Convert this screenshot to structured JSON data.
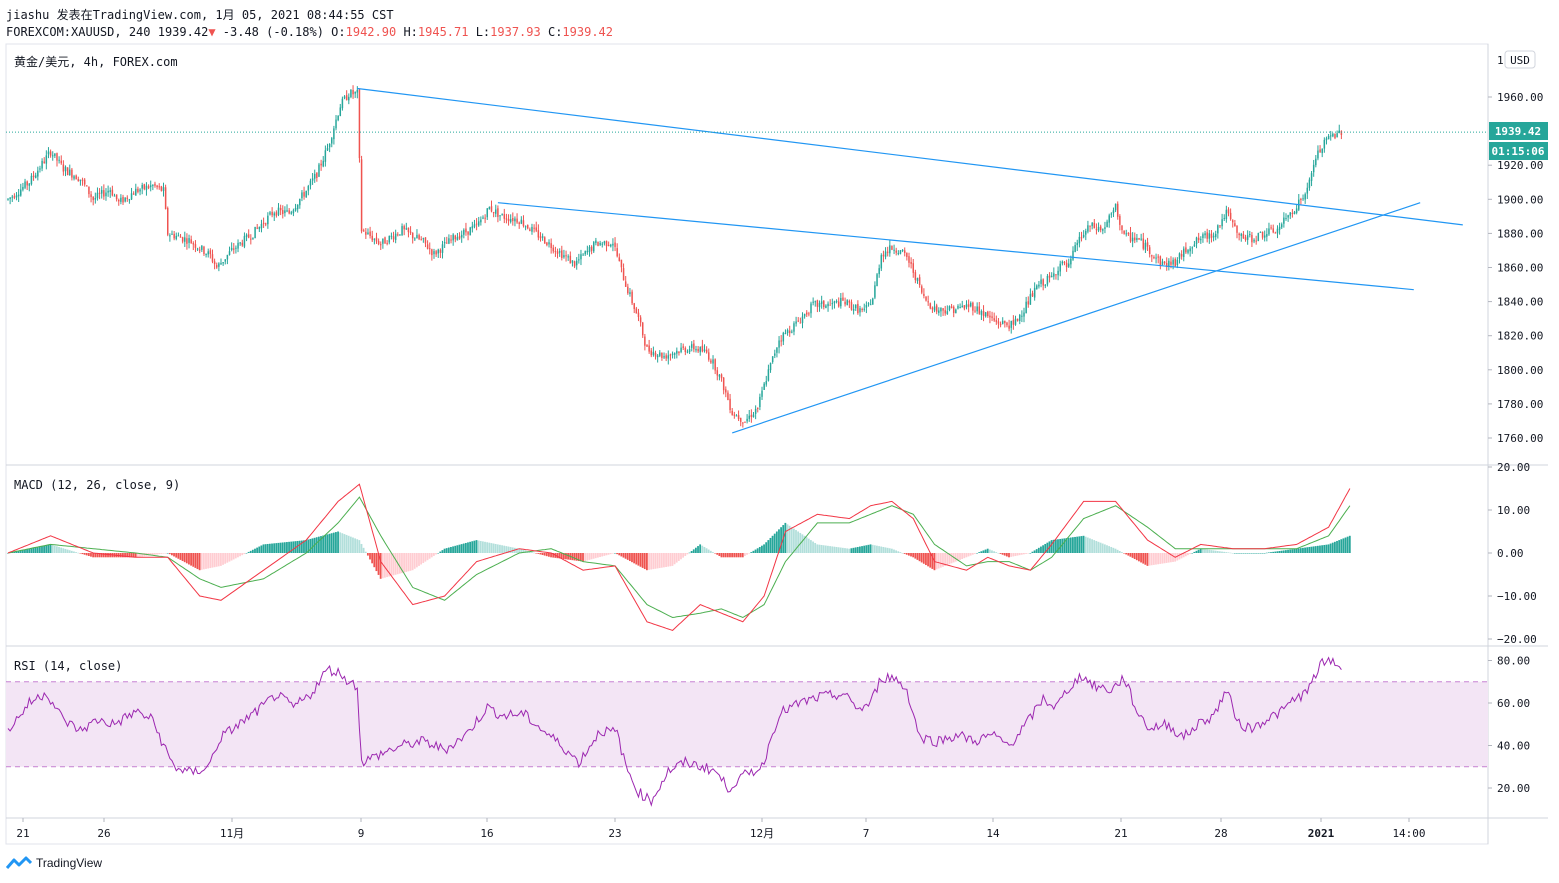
{
  "header": {
    "publish_line": "jiashu 发表在TradingView.com, 1月 05, 2021 08:44:55 CST",
    "symbol": "FOREXCOM:XAUUSD, 240",
    "last": "1939.42",
    "change": "-3.48 (-0.18%)",
    "o_label": "O:",
    "o_value": "1942.90",
    "h_label": "H:",
    "h_value": "1945.71",
    "l_label": "L:",
    "l_value": "1937.93",
    "c_label": "C:",
    "c_value": "1939.42"
  },
  "price_pane": {
    "title": "黄金/美元, 4h, FOREX.com",
    "currency_button": "USD",
    "axis_top_partial": "1",
    "last_price_label": "1939.42",
    "countdown_label": "01:15:06"
  },
  "macd_pane": {
    "title": "MACD (12, 26, close, 9)"
  },
  "rsi_pane": {
    "title": "RSI (14, close)"
  },
  "footer": {
    "brand": "TradingView"
  },
  "colors": {
    "up": "#26a69a",
    "down": "#ef5350",
    "trendline": "#2196f3",
    "macd": "#f23645",
    "signal": "#4caf50",
    "rsi": "#9c27b0",
    "rsi_band": "#f3e5f5",
    "hist_up_strong": "#26a69a",
    "hist_up_weak": "#b2dfdb",
    "hist_dn_strong": "#ef5350",
    "hist_dn_weak": "#ffcdd2"
  },
  "chart_data": {
    "type": "candlestick",
    "timeframe": "4h",
    "x_tick_labels": [
      "21",
      "26",
      "11月",
      "9",
      "16",
      "23",
      "12月",
      "7",
      "14",
      "21",
      "28",
      "2021",
      "14:00"
    ],
    "price_axis": {
      "ticks": [
        1760,
        1780,
        1800,
        1820,
        1840,
        1860,
        1880,
        1900,
        1920,
        1960
      ],
      "tick_labels": [
        "1760.00",
        "1780.00",
        "1800.00",
        "1820.00",
        "1840.00",
        "1860.00",
        "1880.00",
        "1900.00",
        "1920.00",
        "1960.00"
      ],
      "range": [
        1745,
        1980
      ]
    },
    "macd_axis": {
      "ticks": [
        -20,
        -10,
        0,
        10,
        20
      ],
      "tick_labels": [
        "−20.00",
        "−10.00",
        "0.00",
        "10.00",
        "20.00"
      ],
      "range": [
        -20,
        20
      ]
    },
    "rsi_axis": {
      "ticks": [
        20,
        40,
        60,
        80
      ],
      "tick_labels": [
        "20.00",
        "40.00",
        "60.00",
        "80.00"
      ],
      "range": [
        8,
        88
      ],
      "band": [
        30,
        70
      ]
    },
    "last_price": 1939.42,
    "price_path": [
      [
        0,
        1900
      ],
      [
        10,
        1910
      ],
      [
        20,
        1928
      ],
      [
        26,
        1918
      ],
      [
        34,
        1912
      ],
      [
        40,
        1900
      ],
      [
        48,
        1906
      ],
      [
        52,
        1898
      ],
      [
        60,
        1905
      ],
      [
        68,
        1908
      ],
      [
        73,
        1905
      ],
      [
        75,
        1880
      ],
      [
        85,
        1876
      ],
      [
        95,
        1867
      ],
      [
        98,
        1860
      ],
      [
        105,
        1870
      ],
      [
        115,
        1880
      ],
      [
        125,
        1893
      ],
      [
        132,
        1892
      ],
      [
        140,
        1905
      ],
      [
        145,
        1915
      ],
      [
        150,
        1930
      ],
      [
        156,
        1955
      ],
      [
        160,
        1962
      ],
      [
        164,
        1962
      ],
      [
        166,
        1882
      ],
      [
        175,
        1874
      ],
      [
        185,
        1882
      ],
      [
        195,
        1875
      ],
      [
        200,
        1868
      ],
      [
        210,
        1878
      ],
      [
        220,
        1884
      ],
      [
        226,
        1895
      ],
      [
        232,
        1890
      ],
      [
        240,
        1888
      ],
      [
        248,
        1880
      ],
      [
        256,
        1872
      ],
      [
        266,
        1862
      ],
      [
        276,
        1874
      ],
      [
        284,
        1875
      ],
      [
        290,
        1850
      ],
      [
        296,
        1830
      ],
      [
        300,
        1812
      ],
      [
        308,
        1808
      ],
      [
        316,
        1812
      ],
      [
        322,
        1813
      ],
      [
        328,
        1810
      ],
      [
        332,
        1802
      ],
      [
        336,
        1790
      ],
      [
        340,
        1775
      ],
      [
        346,
        1770
      ],
      [
        352,
        1778
      ],
      [
        356,
        1795
      ],
      [
        362,
        1818
      ],
      [
        370,
        1827
      ],
      [
        378,
        1838
      ],
      [
        386,
        1838
      ],
      [
        392,
        1840
      ],
      [
        398,
        1836
      ],
      [
        402,
        1834
      ],
      [
        406,
        1842
      ],
      [
        410,
        1868
      ],
      [
        416,
        1872
      ],
      [
        422,
        1866
      ],
      [
        426,
        1855
      ],
      [
        430,
        1842
      ],
      [
        436,
        1835
      ],
      [
        446,
        1836
      ],
      [
        452,
        1838
      ],
      [
        458,
        1833
      ],
      [
        464,
        1828
      ],
      [
        472,
        1826
      ],
      [
        478,
        1838
      ],
      [
        484,
        1850
      ],
      [
        490,
        1854
      ],
      [
        494,
        1862
      ],
      [
        498,
        1860
      ],
      [
        502,
        1875
      ],
      [
        508,
        1884
      ],
      [
        514,
        1882
      ],
      [
        520,
        1895
      ],
      [
        524,
        1878
      ],
      [
        530,
        1877
      ],
      [
        536,
        1870
      ],
      [
        542,
        1862
      ],
      [
        548,
        1863
      ],
      [
        554,
        1872
      ],
      [
        560,
        1877
      ],
      [
        566,
        1880
      ],
      [
        572,
        1892
      ],
      [
        578,
        1878
      ],
      [
        584,
        1877
      ],
      [
        590,
        1880
      ],
      [
        596,
        1882
      ],
      [
        602,
        1892
      ],
      [
        606,
        1898
      ],
      [
        610,
        1905
      ],
      [
        614,
        1925
      ],
      [
        620,
        1936
      ],
      [
        626,
        1940
      ]
    ],
    "trendlines": [
      {
        "name": "upper-falling",
        "from": [
          164,
          1965
        ],
        "to": [
          683,
          1885
        ]
      },
      {
        "name": "lower-falling",
        "from": [
          230,
          1898
        ],
        "to": [
          660,
          1847
        ]
      },
      {
        "name": "rising-support",
        "from": [
          340,
          1763
        ],
        "to": [
          663,
          1898
        ]
      }
    ],
    "macd_path": [
      [
        0,
        0
      ],
      [
        20,
        4
      ],
      [
        40,
        0
      ],
      [
        60,
        -1
      ],
      [
        75,
        -1
      ],
      [
        90,
        -10
      ],
      [
        100,
        -11
      ],
      [
        120,
        -4
      ],
      [
        140,
        3
      ],
      [
        155,
        12
      ],
      [
        165,
        16
      ],
      [
        175,
        -2
      ],
      [
        190,
        -12
      ],
      [
        205,
        -10
      ],
      [
        220,
        -2
      ],
      [
        240,
        1
      ],
      [
        255,
        0
      ],
      [
        270,
        -4
      ],
      [
        285,
        -3
      ],
      [
        300,
        -16
      ],
      [
        312,
        -18
      ],
      [
        325,
        -12
      ],
      [
        335,
        -14
      ],
      [
        345,
        -16
      ],
      [
        355,
        -10
      ],
      [
        365,
        5
      ],
      [
        380,
        9
      ],
      [
        395,
        8
      ],
      [
        405,
        11
      ],
      [
        415,
        12
      ],
      [
        425,
        8
      ],
      [
        435,
        -2
      ],
      [
        450,
        -4
      ],
      [
        460,
        -1
      ],
      [
        470,
        -3
      ],
      [
        480,
        -4
      ],
      [
        490,
        2
      ],
      [
        505,
        12
      ],
      [
        520,
        12
      ],
      [
        535,
        3
      ],
      [
        548,
        -1
      ],
      [
        560,
        2
      ],
      [
        575,
        1
      ],
      [
        590,
        1
      ],
      [
        605,
        2
      ],
      [
        620,
        6
      ],
      [
        630,
        15
      ]
    ],
    "signal_path": [
      [
        0,
        0
      ],
      [
        20,
        2
      ],
      [
        40,
        1
      ],
      [
        60,
        0
      ],
      [
        75,
        -1
      ],
      [
        90,
        -6
      ],
      [
        100,
        -8
      ],
      [
        120,
        -6
      ],
      [
        140,
        0
      ],
      [
        155,
        7
      ],
      [
        165,
        13
      ],
      [
        175,
        4
      ],
      [
        190,
        -8
      ],
      [
        205,
        -11
      ],
      [
        220,
        -5
      ],
      [
        240,
        0
      ],
      [
        255,
        1
      ],
      [
        270,
        -2
      ],
      [
        285,
        -3
      ],
      [
        300,
        -12
      ],
      [
        312,
        -15
      ],
      [
        325,
        -14
      ],
      [
        335,
        -13
      ],
      [
        345,
        -15
      ],
      [
        355,
        -12
      ],
      [
        365,
        -2
      ],
      [
        380,
        7
      ],
      [
        395,
        7
      ],
      [
        405,
        9
      ],
      [
        415,
        11
      ],
      [
        425,
        9
      ],
      [
        435,
        2
      ],
      [
        450,
        -3
      ],
      [
        460,
        -2
      ],
      [
        470,
        -2
      ],
      [
        480,
        -4
      ],
      [
        490,
        -1
      ],
      [
        505,
        8
      ],
      [
        520,
        11
      ],
      [
        535,
        6
      ],
      [
        548,
        1
      ],
      [
        560,
        1
      ],
      [
        575,
        1
      ],
      [
        590,
        1
      ],
      [
        605,
        1
      ],
      [
        620,
        4
      ],
      [
        630,
        11
      ]
    ],
    "rsi_path": [
      [
        0,
        47
      ],
      [
        10,
        60
      ],
      [
        18,
        65
      ],
      [
        26,
        52
      ],
      [
        34,
        47
      ],
      [
        42,
        52
      ],
      [
        50,
        50
      ],
      [
        60,
        56
      ],
      [
        68,
        52
      ],
      [
        73,
        40
      ],
      [
        78,
        30
      ],
      [
        86,
        27
      ],
      [
        94,
        30
      ],
      [
        100,
        44
      ],
      [
        110,
        51
      ],
      [
        118,
        57
      ],
      [
        126,
        64
      ],
      [
        134,
        58
      ],
      [
        142,
        64
      ],
      [
        150,
        76
      ],
      [
        156,
        74
      ],
      [
        160,
        70
      ],
      [
        164,
        68
      ],
      [
        166,
        32
      ],
      [
        175,
        36
      ],
      [
        185,
        40
      ],
      [
        195,
        42
      ],
      [
        205,
        38
      ],
      [
        215,
        45
      ],
      [
        225,
        58
      ],
      [
        232,
        54
      ],
      [
        242,
        55
      ],
      [
        250,
        48
      ],
      [
        260,
        40
      ],
      [
        268,
        32
      ],
      [
        278,
        47
      ],
      [
        286,
        46
      ],
      [
        290,
        30
      ],
      [
        296,
        18
      ],
      [
        302,
        14
      ],
      [
        310,
        28
      ],
      [
        318,
        32
      ],
      [
        326,
        30
      ],
      [
        332,
        28
      ],
      [
        338,
        20
      ],
      [
        346,
        26
      ],
      [
        354,
        30
      ],
      [
        362,
        55
      ],
      [
        372,
        60
      ],
      [
        382,
        63
      ],
      [
        392,
        64
      ],
      [
        400,
        57
      ],
      [
        405,
        60
      ],
      [
        410,
        72
      ],
      [
        416,
        72
      ],
      [
        422,
        66
      ],
      [
        428,
        44
      ],
      [
        436,
        42
      ],
      [
        446,
        45
      ],
      [
        454,
        42
      ],
      [
        462,
        45
      ],
      [
        470,
        40
      ],
      [
        478,
        50
      ],
      [
        486,
        62
      ],
      [
        492,
        58
      ],
      [
        498,
        67
      ],
      [
        504,
        73
      ],
      [
        510,
        68
      ],
      [
        518,
        66
      ],
      [
        524,
        72
      ],
      [
        530,
        56
      ],
      [
        536,
        48
      ],
      [
        544,
        50
      ],
      [
        552,
        44
      ],
      [
        560,
        51
      ],
      [
        566,
        54
      ],
      [
        572,
        66
      ],
      [
        578,
        50
      ],
      [
        584,
        48
      ],
      [
        590,
        52
      ],
      [
        598,
        56
      ],
      [
        604,
        62
      ],
      [
        610,
        65
      ],
      [
        616,
        78
      ],
      [
        622,
        80
      ],
      [
        626,
        76
      ]
    ]
  }
}
